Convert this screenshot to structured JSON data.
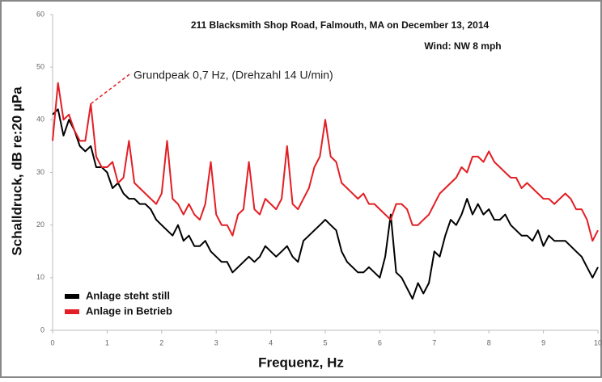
{
  "chart_data": {
    "type": "line",
    "title": "211 Blacksmith Shop Road, Falmouth, MA on December 13, 2014",
    "subtitle": "Wind: NW 8 mph",
    "annotation": "Grundpeak 0,7 Hz, (Drehzahl 14 U/min)",
    "x_label": "Frequenz, Hz",
    "y_label": "Schalldruck, dB re:20 µPa",
    "xlim": [
      0,
      10
    ],
    "xticks": [
      0,
      1,
      2,
      3,
      4,
      5,
      6,
      7,
      8,
      9,
      10
    ],
    "ylim": [
      0,
      60
    ],
    "yticks": [
      0,
      10,
      20,
      30,
      40,
      50,
      60
    ],
    "grid": false,
    "legend": "lower left",
    "x": [
      0,
      0.1,
      0.2,
      0.3,
      0.4,
      0.5,
      0.6,
      0.7,
      0.8,
      0.9,
      1,
      1.1,
      1.2,
      1.3,
      1.4,
      1.5,
      1.6,
      1.7,
      1.8,
      1.9,
      2,
      2.1,
      2.2,
      2.3,
      2.4,
      2.5,
      2.6,
      2.7,
      2.8,
      2.9,
      3,
      3.1,
      3.2,
      3.3,
      3.4,
      3.5,
      3.6,
      3.7,
      3.8,
      3.9,
      4,
      4.1,
      4.2,
      4.3,
      4.4,
      4.5,
      4.6,
      4.7,
      4.8,
      4.9,
      5,
      5.1,
      5.2,
      5.3,
      5.4,
      5.5,
      5.6,
      5.7,
      5.8,
      5.9,
      6,
      6.1,
      6.2,
      6.3,
      6.4,
      6.5,
      6.6,
      6.7,
      6.8,
      6.9,
      7,
      7.1,
      7.2,
      7.3,
      7.4,
      7.5,
      7.6,
      7.7,
      7.8,
      7.9,
      8,
      8.1,
      8.2,
      8.3,
      8.4,
      8.5,
      8.6,
      8.7,
      8.8,
      8.9,
      9,
      9.1,
      9.2,
      9.3,
      9.4,
      9.5,
      9.6,
      9.7,
      9.8,
      9.9,
      10
    ],
    "series": [
      {
        "name": "Anlage steht still",
        "color": "#000000",
        "values": [
          41,
          42,
          37,
          40,
          38,
          35,
          34,
          35,
          31,
          31,
          30,
          27,
          28,
          26,
          25,
          25,
          24,
          24,
          23,
          21,
          20,
          19,
          18,
          20,
          17,
          18,
          16,
          16,
          17,
          15,
          14,
          13,
          13,
          11,
          12,
          13,
          14,
          13,
          14,
          16,
          15,
          14,
          15,
          16,
          14,
          13,
          17,
          18,
          19,
          20,
          21,
          20,
          19,
          15,
          13,
          12,
          11,
          11,
          12,
          11,
          10,
          14,
          22,
          11,
          10,
          8,
          6,
          9,
          7,
          9,
          15,
          14,
          18,
          21,
          20,
          22,
          25,
          22,
          24,
          22,
          23,
          21,
          21,
          22,
          20,
          19,
          18,
          18,
          17,
          19,
          16,
          18,
          17,
          17,
          17,
          16,
          15,
          14,
          12,
          10,
          12
        ]
      },
      {
        "name": "Anlage in Betrieb",
        "color": "#e31e24",
        "values": [
          36,
          47,
          40,
          41,
          38,
          36,
          36,
          43,
          33,
          31,
          31,
          32,
          28,
          29,
          36,
          28,
          27,
          26,
          25,
          24,
          26,
          36,
          25,
          24,
          22,
          24,
          22,
          21,
          24,
          32,
          22,
          20,
          20,
          18,
          22,
          23,
          32,
          23,
          22,
          25,
          24,
          23,
          25,
          35,
          24,
          23,
          25,
          27,
          31,
          33,
          40,
          33,
          32,
          28,
          27,
          26,
          25,
          26,
          24,
          24,
          23,
          22,
          21,
          24,
          24,
          23,
          20,
          20,
          21,
          22,
          24,
          26,
          27,
          28,
          29,
          31,
          30,
          33,
          33,
          32,
          34,
          32,
          31,
          30,
          29,
          29,
          27,
          28,
          27,
          26,
          25,
          25,
          24,
          25,
          26,
          25,
          23,
          23,
          21,
          17,
          19
        ]
      }
    ]
  }
}
